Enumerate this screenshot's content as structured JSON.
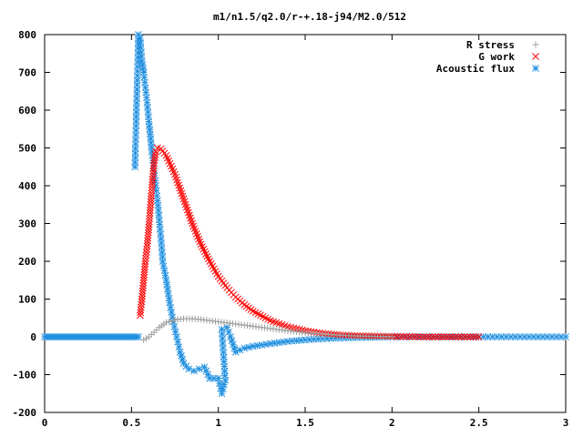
{
  "chart_data": {
    "type": "scatter",
    "title": "m1/n1.5/q2.0/r-+.18-j94/M2.0/512",
    "xlabel": "",
    "ylabel": "",
    "xlim": [
      0,
      3
    ],
    "ylim": [
      -200,
      800
    ],
    "xticks": [
      0,
      0.5,
      1,
      1.5,
      2,
      2.5,
      3
    ],
    "xtick_labels": [
      "0",
      "0.5",
      "1",
      "1.5",
      "2",
      "2.5",
      "3"
    ],
    "yticks": [
      -200,
      -100,
      0,
      100,
      200,
      300,
      400,
      500,
      600,
      700,
      800
    ],
    "ytick_labels": [
      "-200",
      "-100",
      "0",
      "100",
      "200",
      "300",
      "400",
      "500",
      "600",
      "700",
      "800"
    ],
    "grid": false,
    "legend_position": "top-right",
    "series": [
      {
        "name": "R stress",
        "marker": "plus",
        "color": "#a0a0a0",
        "points": [
          [
            0.57,
            -8
          ],
          [
            0.6,
            0
          ],
          [
            0.63,
            12
          ],
          [
            0.66,
            25
          ],
          [
            0.7,
            38
          ],
          [
            0.75,
            45
          ],
          [
            0.8,
            48
          ],
          [
            0.85,
            48
          ],
          [
            0.9,
            46
          ],
          [
            0.95,
            43
          ],
          [
            1.0,
            40
          ],
          [
            1.05,
            37
          ],
          [
            1.1,
            34
          ],
          [
            1.15,
            31
          ],
          [
            1.2,
            28
          ],
          [
            1.3,
            22
          ],
          [
            1.4,
            16
          ],
          [
            1.5,
            11
          ],
          [
            1.6,
            7
          ],
          [
            1.7,
            4
          ],
          [
            1.8,
            2
          ],
          [
            1.9,
            1
          ],
          [
            2.0,
            0
          ]
        ]
      },
      {
        "name": "G work",
        "marker": "cross",
        "color": "#ff0000",
        "points": [
          [
            0.55,
            57
          ],
          [
            0.56,
            100
          ],
          [
            0.57,
            150
          ],
          [
            0.58,
            200
          ],
          [
            0.59,
            240
          ],
          [
            0.6,
            290
          ],
          [
            0.61,
            350
          ],
          [
            0.62,
            410
          ],
          [
            0.63,
            460
          ],
          [
            0.64,
            490
          ],
          [
            0.65,
            500
          ],
          [
            0.67,
            498
          ],
          [
            0.7,
            480
          ],
          [
            0.75,
            430
          ],
          [
            0.8,
            365
          ],
          [
            0.85,
            300
          ],
          [
            0.9,
            245
          ],
          [
            0.95,
            200
          ],
          [
            1.0,
            160
          ],
          [
            1.05,
            130
          ],
          [
            1.1,
            105
          ],
          [
            1.15,
            85
          ],
          [
            1.2,
            68
          ],
          [
            1.3,
            43
          ],
          [
            1.4,
            27
          ],
          [
            1.5,
            16
          ],
          [
            1.6,
            9
          ],
          [
            1.7,
            5
          ],
          [
            1.8,
            3
          ],
          [
            1.9,
            2
          ],
          [
            2.0,
            1
          ],
          [
            2.2,
            0
          ],
          [
            2.5,
            0
          ]
        ]
      },
      {
        "name": "Acoustic flux",
        "marker": "star",
        "color": "#1f8fdf",
        "points": [
          [
            0.52,
            450
          ],
          [
            0.54,
            800
          ],
          [
            0.55,
            790
          ],
          [
            0.56,
            730
          ],
          [
            0.57,
            700
          ],
          [
            0.58,
            660
          ],
          [
            0.59,
            620
          ],
          [
            0.6,
            570
          ],
          [
            0.61,
            525
          ],
          [
            0.62,
            480
          ],
          [
            0.63,
            440
          ],
          [
            0.64,
            400
          ],
          [
            0.65,
            360
          ],
          [
            0.66,
            310
          ],
          [
            0.67,
            260
          ],
          [
            0.68,
            200
          ],
          [
            0.7,
            150
          ],
          [
            0.72,
            90
          ],
          [
            0.74,
            40
          ],
          [
            0.76,
            0
          ],
          [
            0.78,
            -40
          ],
          [
            0.8,
            -70
          ],
          [
            0.83,
            -85
          ],
          [
            0.86,
            -90
          ],
          [
            0.89,
            -85
          ],
          [
            0.92,
            -80
          ],
          [
            0.95,
            -110
          ],
          [
            1.0,
            -110
          ],
          [
            1.02,
            -150
          ],
          [
            1.04,
            -115
          ],
          [
            1.02,
            20
          ],
          [
            1.05,
            25
          ],
          [
            1.07,
            0
          ],
          [
            1.1,
            -40
          ],
          [
            1.15,
            -30
          ],
          [
            1.2,
            -25
          ],
          [
            1.3,
            -18
          ],
          [
            1.4,
            -12
          ],
          [
            1.5,
            -8
          ],
          [
            1.6,
            -5
          ],
          [
            1.7,
            -3
          ],
          [
            1.8,
            -2
          ],
          [
            2.0,
            0
          ],
          [
            2.5,
            0
          ],
          [
            3.0,
            0
          ]
        ]
      }
    ]
  }
}
